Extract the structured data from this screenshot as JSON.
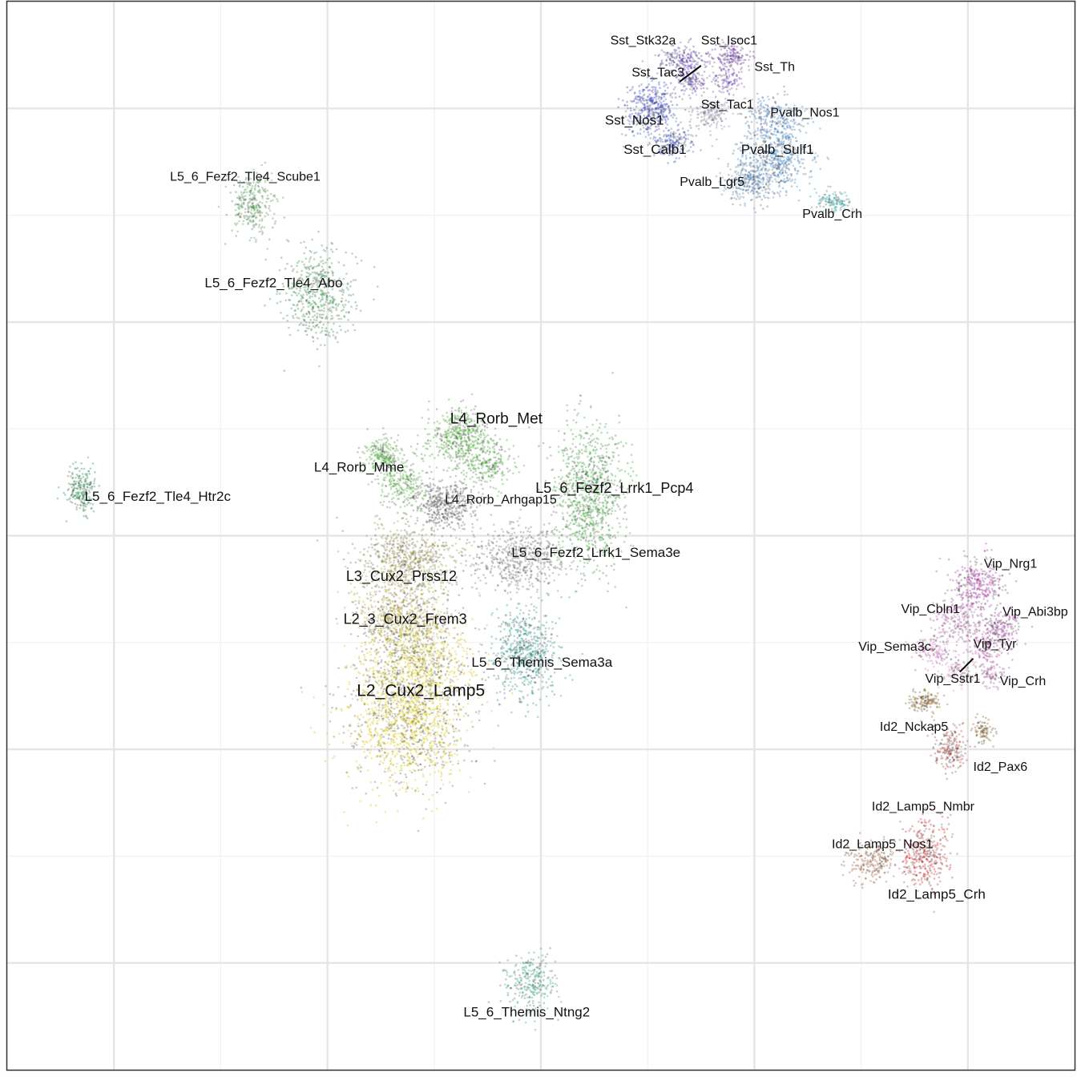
{
  "chart_data": {
    "type": "scatter",
    "title": "",
    "xlabel": "",
    "ylabel": "",
    "xlim": [
      -10,
      10
    ],
    "ylim": [
      -10,
      10
    ],
    "grid": true,
    "point_alpha": 0.35,
    "clusters": [
      {
        "label": "L2_Cux2_Lamp5",
        "label_size": 21,
        "color": "#d8c400",
        "ellipses": [
          {
            "cx": -2.5,
            "cy": -3.4,
            "rx": 1.15,
            "ry": 1.3,
            "n": 1500
          },
          {
            "cx": -2.3,
            "cy": -2.3,
            "rx": 1.0,
            "ry": 0.7,
            "n": 600
          }
        ]
      },
      {
        "label": "L2_3_Cux2_Frem3",
        "label_size": 18,
        "color": "#b8a830",
        "ellipses": [
          {
            "cx": -2.6,
            "cy": -1.6,
            "rx": 0.95,
            "ry": 0.6,
            "n": 700
          }
        ]
      },
      {
        "label": "L3_Cux2_Prss12",
        "label_size": 18,
        "color": "#9a9a40",
        "ellipses": [
          {
            "cx": -2.5,
            "cy": -0.5,
            "rx": 0.95,
            "ry": 0.7,
            "n": 800
          }
        ]
      },
      {
        "label": "L4_Rorb_Mme",
        "label_size": 17,
        "color": "#44b030",
        "ellipses": [
          {
            "cx": -2.95,
            "cy": 1.5,
            "rx": 0.35,
            "ry": 0.35,
            "n": 220
          },
          {
            "cx": -2.6,
            "cy": 1.0,
            "rx": 0.55,
            "ry": 0.5,
            "n": 260
          }
        ]
      },
      {
        "label": "L4_Rorb_Met",
        "label_size": 19,
        "color": "#3fa82a",
        "ellipses": [
          {
            "cx": -1.5,
            "cy": 1.85,
            "rx": 0.6,
            "ry": 0.55,
            "n": 500
          },
          {
            "cx": -1.0,
            "cy": 1.3,
            "rx": 0.5,
            "ry": 0.45,
            "n": 220
          }
        ]
      },
      {
        "label": "L4_Rorb_Arhgap15",
        "label_size": 16,
        "color": "#666666",
        "ellipses": [
          {
            "cx": -1.8,
            "cy": 0.6,
            "rx": 0.55,
            "ry": 0.45,
            "n": 450
          }
        ]
      },
      {
        "label": "L5_6_Fezf2_Lrrk1_Pcp4",
        "label_size": 18,
        "color": "#3aa637",
        "ellipses": [
          {
            "cx": 0.9,
            "cy": 0.75,
            "rx": 0.65,
            "ry": 1.3,
            "n": 1000
          }
        ]
      },
      {
        "label": "L5_6_Fezf2_Lrrk1_Sema3e",
        "label_size": 17,
        "color": "#777777",
        "ellipses": [
          {
            "cx": -0.4,
            "cy": -0.4,
            "rx": 0.9,
            "ry": 0.6,
            "n": 550
          }
        ]
      },
      {
        "label": "L5_6_Themis_Sema3a",
        "label_size": 17,
        "color": "#1f9a86",
        "ellipses": [
          {
            "cx": -0.3,
            "cy": -2.2,
            "rx": 0.6,
            "ry": 0.85,
            "n": 650
          }
        ]
      },
      {
        "label": "L5_6_Fezf2_Tle4_Scube1",
        "label_size": 16,
        "color": "#4a9a4a",
        "ellipses": [
          {
            "cx": -5.4,
            "cy": 6.2,
            "rx": 0.45,
            "ry": 0.55,
            "n": 300
          }
        ]
      },
      {
        "label": "L5_6_Fezf2_Tle4_Abo",
        "label_size": 17,
        "color": "#2f8f4a",
        "ellipses": [
          {
            "cx": -4.2,
            "cy": 4.5,
            "rx": 0.65,
            "ry": 0.85,
            "n": 500
          }
        ]
      },
      {
        "label": "L5_6_Fezf2_Tle4_Htr2c",
        "label_size": 17,
        "color": "#1f8a4a",
        "ellipses": [
          {
            "cx": -8.6,
            "cy": 0.85,
            "rx": 0.3,
            "ry": 0.45,
            "n": 220
          }
        ]
      },
      {
        "label": "L5_6_Themis_Ntng2",
        "label_size": 17,
        "color": "#2aa585",
        "ellipses": [
          {
            "cx": -0.2,
            "cy": -8.35,
            "rx": 0.45,
            "ry": 0.55,
            "n": 280
          }
        ]
      },
      {
        "label": "Sst_Stk32a",
        "label_size": 16,
        "color": "#4a2ab8",
        "ellipses": [
          {
            "cx": 2.65,
            "cy": 8.9,
            "rx": 0.4,
            "ry": 0.3,
            "n": 200
          }
        ]
      },
      {
        "label": "Sst_Isoc1",
        "label_size": 16,
        "color": "#6a2aa8",
        "ellipses": [
          {
            "cx": 3.55,
            "cy": 8.95,
            "rx": 0.35,
            "ry": 0.3,
            "n": 180
          }
        ]
      },
      {
        "label": "Sst_Tac3",
        "label_size": 16,
        "color": "#5a3ab8",
        "ellipses": [
          {
            "cx": 2.85,
            "cy": 8.5,
            "rx": 0.3,
            "ry": 0.25,
            "n": 120
          }
        ]
      },
      {
        "label": "Sst_Th",
        "label_size": 16,
        "color": "#7a4ac8",
        "ellipses": [
          {
            "cx": 3.5,
            "cy": 8.5,
            "rx": 0.3,
            "ry": 0.25,
            "n": 100
          }
        ]
      },
      {
        "label": "Sst_Tac1",
        "label_size": 16,
        "color": "#8a8aa8",
        "ellipses": [
          {
            "cx": 3.2,
            "cy": 7.9,
            "rx": 0.35,
            "ry": 0.3,
            "n": 160
          }
        ]
      },
      {
        "label": "Sst_Nos1",
        "label_size": 17,
        "color": "#2838c8",
        "ellipses": [
          {
            "cx": 2.1,
            "cy": 8.0,
            "rx": 0.45,
            "ry": 0.55,
            "n": 400
          }
        ]
      },
      {
        "label": "Sst_Calb1",
        "label_size": 17,
        "color": "#3850c8",
        "ellipses": [
          {
            "cx": 2.45,
            "cy": 7.35,
            "rx": 0.4,
            "ry": 0.3,
            "n": 200
          }
        ]
      },
      {
        "label": "Pvalb_Nos1",
        "label_size": 16,
        "color": "#3a7ac8",
        "ellipses": [
          {
            "cx": 4.4,
            "cy": 7.75,
            "rx": 0.55,
            "ry": 0.45,
            "n": 300
          }
        ]
      },
      {
        "label": "Pvalb_Sulf1",
        "label_size": 17,
        "color": "#3a86c8",
        "ellipses": [
          {
            "cx": 4.35,
            "cy": 7.0,
            "rx": 0.75,
            "ry": 0.55,
            "n": 500
          }
        ]
      },
      {
        "label": "Pvalb_Lgr5",
        "label_size": 16,
        "color": "#5a86b8",
        "ellipses": [
          {
            "cx": 3.9,
            "cy": 6.6,
            "rx": 0.5,
            "ry": 0.35,
            "n": 250
          }
        ]
      },
      {
        "label": "Pvalb_Crh",
        "label_size": 16,
        "color": "#1fa0a0",
        "ellipses": [
          {
            "cx": 5.5,
            "cy": 6.25,
            "rx": 0.3,
            "ry": 0.2,
            "n": 120
          }
        ]
      },
      {
        "label": "Vip_Nrg1",
        "label_size": 16,
        "color": "#b02aa8",
        "ellipses": [
          {
            "cx": 8.2,
            "cy": -0.9,
            "rx": 0.55,
            "ry": 0.45,
            "n": 320
          }
        ]
      },
      {
        "label": "Vip_Cbln1",
        "label_size": 16,
        "color": "#c060b0",
        "ellipses": [
          {
            "cx": 7.8,
            "cy": -1.6,
            "rx": 0.45,
            "ry": 0.4,
            "n": 220
          }
        ]
      },
      {
        "label": "Vip_Abi3bp",
        "label_size": 16,
        "color": "#a030a0",
        "ellipses": [
          {
            "cx": 8.6,
            "cy": -1.75,
            "rx": 0.4,
            "ry": 0.35,
            "n": 200
          }
        ]
      },
      {
        "label": "Vip_Sema3c",
        "label_size": 16,
        "color": "#d070c0",
        "ellipses": [
          {
            "cx": 7.35,
            "cy": -2.15,
            "rx": 0.35,
            "ry": 0.3,
            "n": 150
          }
        ]
      },
      {
        "label": "Vip_Tyr",
        "label_size": 16,
        "color": "#c050b0",
        "ellipses": [
          {
            "cx": 8.3,
            "cy": -2.1,
            "rx": 0.3,
            "ry": 0.3,
            "n": 120
          }
        ]
      },
      {
        "label": "Vip_Sstr1",
        "label_size": 16,
        "color": "#e090c0",
        "ellipses": [
          {
            "cx": 7.8,
            "cy": -2.55,
            "rx": 0.3,
            "ry": 0.25,
            "n": 110
          }
        ]
      },
      {
        "label": "Vip_Crh",
        "label_size": 16,
        "color": "#b060a8",
        "ellipses": [
          {
            "cx": 8.45,
            "cy": -2.6,
            "rx": 0.3,
            "ry": 0.25,
            "n": 100
          }
        ]
      },
      {
        "label": "Id2_Nckap5",
        "label_size": 16,
        "color": "#8a5a10",
        "ellipses": [
          {
            "cx": 7.2,
            "cy": -3.1,
            "rx": 0.3,
            "ry": 0.2,
            "n": 140
          }
        ]
      },
      {
        "label": "Id2_Pax6",
        "label_size": 16,
        "color": "#8a5a10",
        "ellipses": [
          {
            "cx": 8.3,
            "cy": -3.65,
            "rx": 0.2,
            "ry": 0.25,
            "n": 90
          }
        ]
      },
      {
        "label": "Id2_Lamp5_Nmbr",
        "label_size": 16,
        "color": "#b04030",
        "ellipses": [
          {
            "cx": 7.65,
            "cy": -4.0,
            "rx": 0.3,
            "ry": 0.45,
            "n": 200
          }
        ]
      },
      {
        "label": "Id2_Lamp5_Nos1",
        "label_size": 16,
        "color": "#a05a30",
        "ellipses": [
          {
            "cx": 6.2,
            "cy": -6.1,
            "rx": 0.45,
            "ry": 0.4,
            "n": 220
          }
        ]
      },
      {
        "label": "Id2_Lamp5_Crh",
        "label_size": 17,
        "color": "#d02020",
        "ellipses": [
          {
            "cx": 7.2,
            "cy": -5.95,
            "rx": 0.45,
            "ry": 0.65,
            "n": 360
          }
        ]
      }
    ],
    "labels": [
      {
        "text": "Sst_Stk32a",
        "x": 1.3,
        "y": 9.2
      },
      {
        "text": "Sst_Isoc1",
        "x": 3.0,
        "y": 9.2
      },
      {
        "text": "Sst_Tac3",
        "x": 1.7,
        "y": 8.6
      },
      {
        "text": "Sst_Th",
        "x": 4.0,
        "y": 8.7
      },
      {
        "text": "Sst_Tac1",
        "x": 3.0,
        "y": 8.0
      },
      {
        "text": "Sst_Nos1",
        "x": 1.2,
        "y": 7.7
      },
      {
        "text": "Sst_Calb1",
        "x": 1.55,
        "y": 7.15
      },
      {
        "text": "Pvalb_Nos1",
        "x": 4.3,
        "y": 7.85
      },
      {
        "text": "Pvalb_Sulf1",
        "x": 3.75,
        "y": 7.15
      },
      {
        "text": "Pvalb_Lgr5",
        "x": 2.6,
        "y": 6.55
      },
      {
        "text": "Pvalb_Crh",
        "x": 4.9,
        "y": 5.95
      },
      {
        "text": "L5_6_Fezf2_Tle4_Scube1",
        "x": -6.95,
        "y": 6.65
      },
      {
        "text": "L5_6_Fezf2_Tle4_Abo",
        "x": -6.3,
        "y": 4.65
      },
      {
        "text": "L4_Rorb_Met",
        "x": -1.7,
        "y": 2.1
      },
      {
        "text": "L4_Rorb_Mme",
        "x": -4.25,
        "y": 1.2
      },
      {
        "text": "L5_6_Fezf2_Tle4_Htr2c",
        "x": -8.55,
        "y": 0.65
      },
      {
        "text": "L4_Rorb_Arhgap15",
        "x": -1.8,
        "y": 0.6
      },
      {
        "text": "L5_6_Fezf2_Lrrk1_Pcp4",
        "x": -0.1,
        "y": 0.8
      },
      {
        "text": "L5_6_Fezf2_Lrrk1_Sema3e",
        "x": -0.55,
        "y": -0.4
      },
      {
        "text": "L3_Cux2_Prss12",
        "x": -3.65,
        "y": -0.85
      },
      {
        "text": "L2_3_Cux2_Frem3",
        "x": -3.7,
        "y": -1.65
      },
      {
        "text": "L5_6_Themis_Sema3a",
        "x": -1.3,
        "y": -2.45
      },
      {
        "text": "L2_Cux2_Lamp5",
        "x": -3.45,
        "y": -3.0
      },
      {
        "text": "Vip_Nrg1",
        "x": 8.3,
        "y": -0.6
      },
      {
        "text": "Vip_Cbln1",
        "x": 6.75,
        "y": -1.45
      },
      {
        "text": "Vip_Abi3bp",
        "x": 8.65,
        "y": -1.5
      },
      {
        "text": "Vip_Sema3c",
        "x": 5.95,
        "y": -2.15
      },
      {
        "text": "Vip_Tyr",
        "x": 8.1,
        "y": -2.1
      },
      {
        "text": "Vip_Sstr1",
        "x": 7.2,
        "y": -2.75
      },
      {
        "text": "Vip_Crh",
        "x": 8.6,
        "y": -2.8
      },
      {
        "text": "Id2_Nckap5",
        "x": 6.35,
        "y": -3.65
      },
      {
        "text": "Id2_Pax6",
        "x": 8.1,
        "y": -4.4
      },
      {
        "text": "Id2_Lamp5_Nmbr",
        "x": 6.2,
        "y": -5.15
      },
      {
        "text": "Id2_Lamp5_Nos1",
        "x": 5.45,
        "y": -5.85
      },
      {
        "text": "Id2_Lamp5_Crh",
        "x": 6.5,
        "y": -6.8
      },
      {
        "text": "L5_6_Themis_Ntng2",
        "x": -1.45,
        "y": -9.0
      }
    ],
    "leader_lines": [
      {
        "x1": 2.6,
        "y1": 8.5,
        "x2": 3.0,
        "y2": 8.8
      },
      {
        "x1": 7.85,
        "y1": -2.55,
        "x2": 8.1,
        "y2": -2.3
      }
    ]
  }
}
